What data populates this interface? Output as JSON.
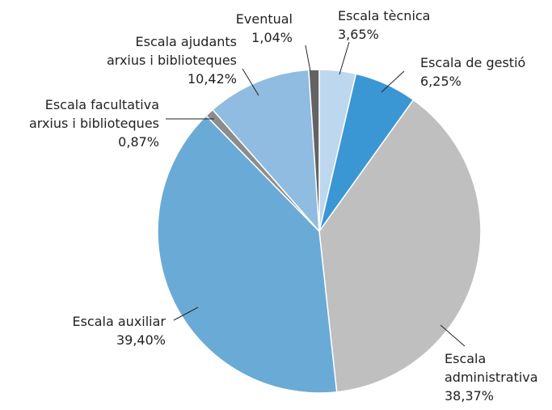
{
  "chart_data": {
    "type": "pie",
    "categories": [
      "Escala tècnica",
      "Escala de gestió",
      "Escala\nadministrativa",
      "Escala auxiliar",
      "Escala facultativa\narxius i biblioteques",
      "Escala ajudants\narxius i biblioteques",
      "Eventual"
    ],
    "values": [
      3.65,
      6.25,
      38.37,
      39.4,
      0.87,
      10.42,
      1.04
    ],
    "value_labels": [
      "3,65%",
      "6,25%",
      "38,37%",
      "39,40%",
      "0,87%",
      "10,42%",
      "1,04%"
    ],
    "colors": [
      "#bdd7ee",
      "#3a97d4",
      "#bfbfbf",
      "#6aaad6",
      "#8c8c8c",
      "#8fbce0",
      "#636363"
    ]
  }
}
